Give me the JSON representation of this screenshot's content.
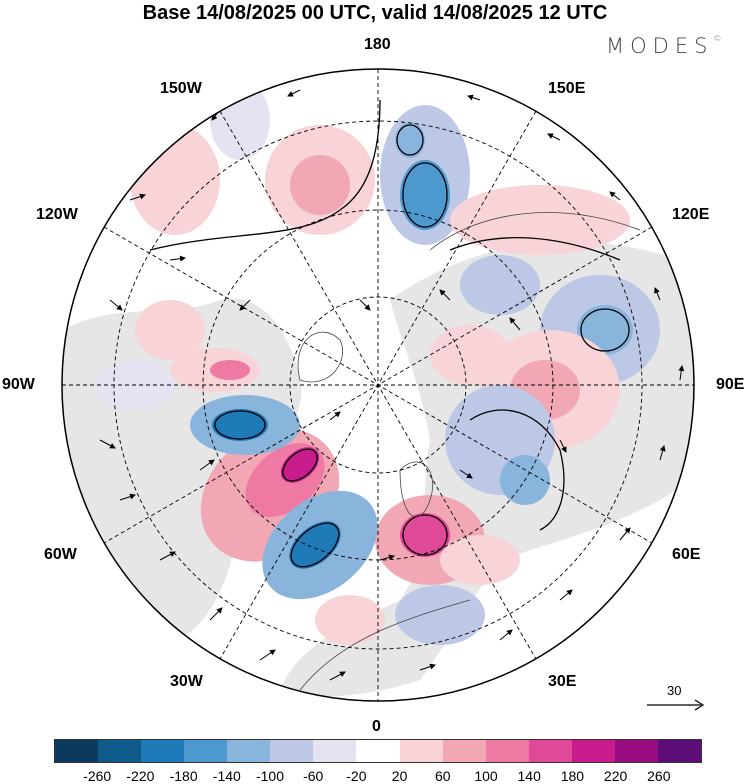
{
  "title": "Base 14/08/2025 00 UTC, valid 14/08/2025 12 UTC",
  "brand": "MODES",
  "brand_mark": "©",
  "longitude_labels": {
    "top": "180",
    "bottom": "0",
    "left": "90W",
    "right": "90E",
    "upper_left_1": "150W",
    "upper_left_2": "120W",
    "upper_right_1": "150E",
    "upper_right_2": "120E",
    "lower_left_1": "60W",
    "lower_left_2": "30W",
    "lower_right_1": "60E",
    "lower_right_2": "30E"
  },
  "reference_vector": "30",
  "colorbar": {
    "colors": [
      "#0b3a5c",
      "#0e5a8a",
      "#1f7ab8",
      "#4d98cf",
      "#89b4dc",
      "#bcc8e6",
      "#e5e2f1",
      "#ffffff",
      "#f8d3d7",
      "#f2a7b4",
      "#ee7aa4",
      "#e04898",
      "#c81c8c",
      "#9a0d80",
      "#5e0e78"
    ],
    "tick_labels": [
      "-260",
      "-220",
      "-180",
      "-140",
      "-100",
      "-60",
      "-20",
      "20",
      "60",
      "100",
      "140",
      "180",
      "220",
      "260"
    ]
  }
}
